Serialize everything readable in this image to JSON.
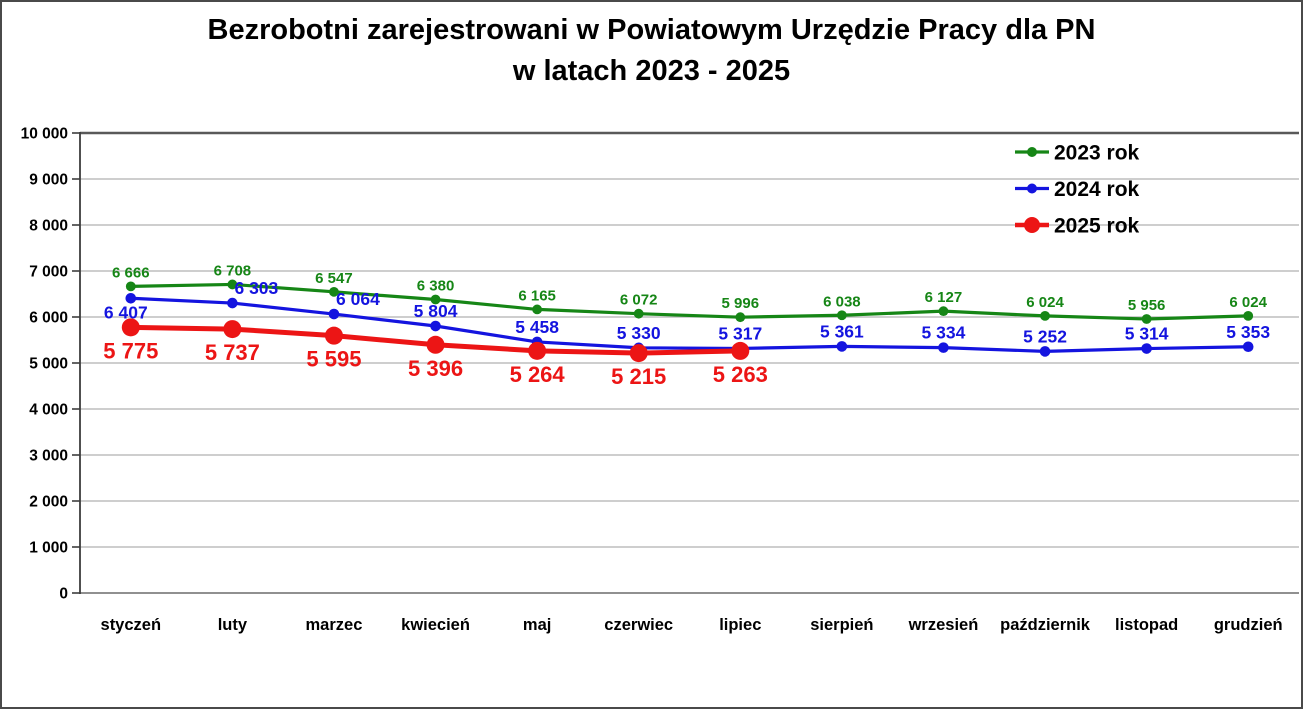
{
  "page": {
    "background": "#ffffff",
    "border_color": "#4a4a4a"
  },
  "title": {
    "line1": "Bezrobotni zarejestrowani w Powiatowym Urzędzie Pracy dla PN",
    "line2": "w latach 2023 - 2025"
  },
  "chart_data": {
    "type": "line",
    "categories": [
      "styczeń",
      "luty",
      "marzec",
      "kwiecień",
      "maj",
      "czerwiec",
      "lipiec",
      "sierpień",
      "wrzesień",
      "październik",
      "listopad",
      "grudzień"
    ],
    "series": [
      {
        "name": "2023 rok",
        "color": "#168616",
        "values": [
          6666,
          6708,
          6547,
          6380,
          6165,
          6072,
          5996,
          6038,
          6127,
          6024,
          5956,
          6024
        ]
      },
      {
        "name": "2024 rok",
        "color": "#1414DF",
        "values": [
          6407,
          6303,
          6064,
          5804,
          5458,
          5330,
          5317,
          5361,
          5334,
          5252,
          5314,
          5353
        ]
      },
      {
        "name": "2025 rok",
        "color": "#EC1515",
        "values": [
          5775,
          5737,
          5595,
          5396,
          5264,
          5215,
          5263
        ]
      }
    ],
    "data_labels": [
      "6 666",
      "6 708",
      "6 547",
      "6 380",
      "6 165",
      "6 072",
      "5 996",
      "6 038",
      "6 127",
      "6 024",
      "5 956",
      "6 024",
      "6 407",
      "6 303",
      "6 064",
      "5 804",
      "5 458",
      "5 330",
      "5 317",
      "5 361",
      "5 334",
      "5 252",
      "5 314",
      "5 353",
      "5 775",
      "5 737",
      "5 595",
      "5 396",
      "5 264",
      "5 215",
      "5 263"
    ],
    "xlabel": "",
    "ylabel": "",
    "ylim": [
      0,
      10000
    ],
    "ytick_step": 1000,
    "y_tick_labels": [
      "0",
      "1 000",
      "2 000",
      "3 000",
      "4 000",
      "5 000",
      "6 000",
      "7 000",
      "8 000",
      "9 000",
      "10 000"
    ],
    "grid": true,
    "legend_position": "top-right",
    "legend_entries": [
      "2023 rok",
      "2024 rok",
      "2025 rok"
    ]
  },
  "colors": {
    "gridline": "#b0b0b0",
    "plot_top_border": "#595959",
    "axis": "#3d3d3d",
    "bottom_axis": "#6b6b6b",
    "text": "#000000"
  }
}
